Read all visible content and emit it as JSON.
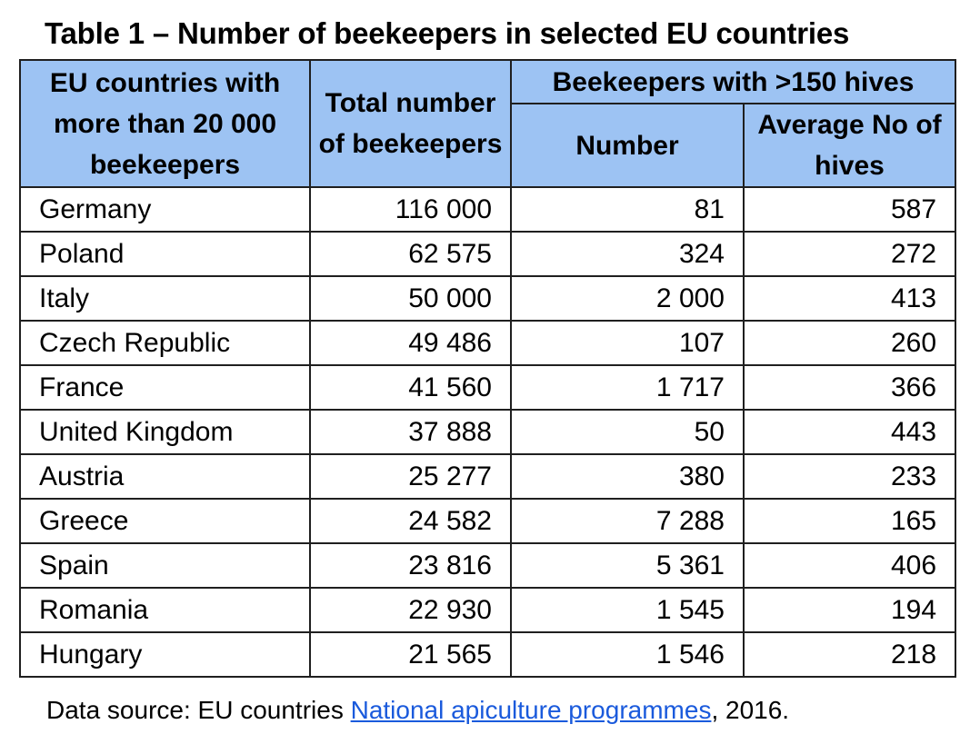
{
  "title": "Table 1 – Number of beekeepers in selected EU countries",
  "table": {
    "headers": {
      "country": "EU countries with more than 20 000 beekeepers",
      "total": "Total number of beekeepers",
      "group": "Beekeepers with >150 hives",
      "number": "Number",
      "average": "Average No of hives"
    },
    "rows": [
      {
        "country": "Germany",
        "total": "116 000",
        "number": "81",
        "average": "587"
      },
      {
        "country": "Poland",
        "total": "62 575",
        "number": "324",
        "average": "272"
      },
      {
        "country": "Italy",
        "total": "50 000",
        "number": "2 000",
        "average": "413"
      },
      {
        "country": "Czech Republic",
        "total": "49 486",
        "number": "107",
        "average": "260"
      },
      {
        "country": "France",
        "total": "41 560",
        "number": "1 717",
        "average": "366"
      },
      {
        "country": "United Kingdom",
        "total": "37 888",
        "number": "50",
        "average": "443"
      },
      {
        "country": "Austria",
        "total": "25 277",
        "number": "380",
        "average": "233"
      },
      {
        "country": "Greece",
        "total": "24 582",
        "number": "7 288",
        "average": "165"
      },
      {
        "country": "Spain",
        "total": "23 816",
        "number": "5 361",
        "average": "406"
      },
      {
        "country": "Romania",
        "total": "22 930",
        "number": "1 545",
        "average": "194"
      },
      {
        "country": "Hungary",
        "total": "21 565",
        "number": "1 546",
        "average": "218"
      }
    ]
  },
  "source": {
    "prefix": "Data source: EU countries ",
    "link_text": "National apiculture programmes",
    "suffix": ", 2016."
  },
  "colors": {
    "header_background": "#9dc3f3",
    "link": "#1a5adc",
    "border": "#1f1f1f"
  }
}
